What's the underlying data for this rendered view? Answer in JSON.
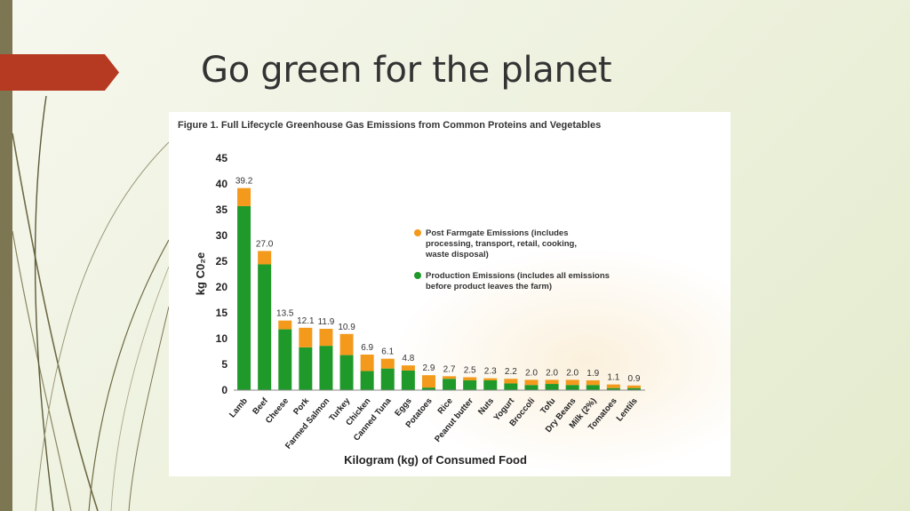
{
  "slide": {
    "title": "Go green for the planet",
    "accent_color": "#b53a21",
    "bar_color": "#7d7653"
  },
  "chart_data": {
    "type": "bar",
    "stacked": true,
    "title": "Figure 1. Full Lifecycle Greenhouse Gas Emissions from Common Proteins and Vegetables",
    "xlabel": "Kilogram (kg) of Consumed Food",
    "ylabel": "kg C0₂e",
    "ylim": [
      0,
      45
    ],
    "yticks": [
      0,
      5,
      10,
      15,
      20,
      25,
      30,
      35,
      40,
      45
    ],
    "grid": false,
    "legend_position": "right",
    "categories": [
      "Lamb",
      "Beef",
      "Cheese",
      "Pork",
      "Farmed Salmon",
      "Turkey",
      "Chicken",
      "Canned Tuna",
      "Eggs",
      "Potatoes",
      "Rice",
      "Peanut butter",
      "Nuts",
      "Yogurt",
      "Broccoli",
      "Tofu",
      "Dry Beans",
      "Milk (2%)",
      "Tomatoes",
      "Lentils"
    ],
    "totals": [
      "39.2",
      "27.0",
      "13.5",
      "12.1",
      "11.9",
      "10.9",
      "6.9",
      "6.1",
      "4.8",
      "2.9",
      "2.7",
      "2.5",
      "2.3",
      "2.2",
      "2.0",
      "2.0",
      "2.0",
      "1.9",
      "1.1",
      "0.9"
    ],
    "series": [
      {
        "name": "Production Emissions (includes all emissions before product leaves the farm)",
        "color": "#1f9a2a",
        "values": [
          35.7,
          24.4,
          11.8,
          8.3,
          8.6,
          6.8,
          3.7,
          4.2,
          3.8,
          0.5,
          2.2,
          1.9,
          1.9,
          1.3,
          1.0,
          1.2,
          1.0,
          1.0,
          0.4,
          0.4
        ]
      },
      {
        "name": "Post Farmgate Emissions (includes processing, transport, retail, cooking, waste disposal)",
        "color": "#f39a1c",
        "values": [
          3.5,
          2.6,
          1.7,
          3.8,
          3.3,
          4.1,
          3.2,
          1.9,
          1.0,
          2.4,
          0.5,
          0.6,
          0.4,
          0.9,
          1.0,
          0.8,
          1.0,
          0.9,
          0.7,
          0.5
        ]
      }
    ],
    "legend": [
      {
        "lines": [
          "Post Farmgate Emissions (includes",
          "processing, transport, retail, cooking,",
          "waste disposal)"
        ],
        "color": "#f39a1c"
      },
      {
        "lines": [
          "Production Emissions (includes all emissions",
          "before product leaves the farm)"
        ],
        "color": "#1f9a2a"
      }
    ]
  }
}
